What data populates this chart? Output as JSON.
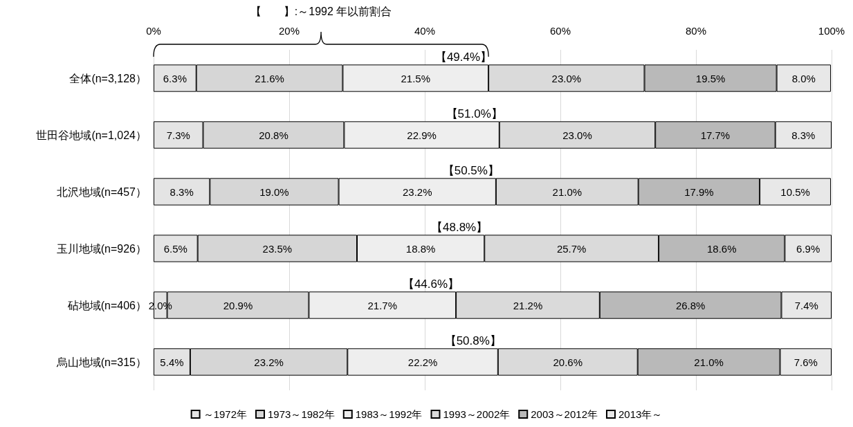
{
  "chart_data": {
    "type": "bar",
    "orientation": "horizontal",
    "stacked": true,
    "categories": [
      "全体(n=3,128）",
      "世田谷地域(n=1,024）",
      "北沢地域(n=457）",
      "玉川地域(n=926）",
      "砧地域(n=406）",
      "烏山地域(n=315）"
    ],
    "series": [
      {
        "name": "～1972年",
        "color": "#e4e4e4",
        "values": [
          6.3,
          7.3,
          8.3,
          6.5,
          2.0,
          5.4
        ],
        "value_labels": [
          "6.3%",
          "7.3%",
          "8.3%",
          "6.5%",
          "2.0%",
          "5.4%"
        ]
      },
      {
        "name": "1973～1982年",
        "color": "#d6d6d6",
        "values": [
          21.6,
          20.8,
          19.0,
          23.5,
          20.9,
          23.2
        ],
        "value_labels": [
          "21.6%",
          "20.8%",
          "19.0%",
          "23.5%",
          "20.9%",
          "23.2%"
        ]
      },
      {
        "name": "1983～1992年",
        "color": "#eeeeee",
        "values": [
          21.5,
          22.9,
          23.2,
          18.8,
          21.7,
          22.2
        ],
        "value_labels": [
          "21.5%",
          "22.9%",
          "23.2%",
          "18.8%",
          "21.7%",
          "22.2%"
        ]
      },
      {
        "name": "1993～2002年",
        "color": "#dadada",
        "values": [
          23.0,
          23.0,
          21.0,
          25.7,
          21.2,
          20.6
        ],
        "value_labels": [
          "23.0%",
          "23.0%",
          "21.0%",
          "25.7%",
          "21.2%",
          "20.6%"
        ]
      },
      {
        "name": "2003～2012年",
        "color": "#b9b9b9",
        "values": [
          19.5,
          17.7,
          17.9,
          18.6,
          26.8,
          21.0
        ],
        "value_labels": [
          "19.5%",
          "17.7%",
          "17.9%",
          "18.6%",
          "26.8%",
          "21.0%"
        ]
      },
      {
        "name": "2013年～",
        "color": "#e8e8e8",
        "values": [
          8.0,
          8.3,
          10.5,
          6.9,
          7.4,
          7.6
        ],
        "value_labels": [
          "8.0%",
          "8.3%",
          "10.5%",
          "6.9%",
          "7.4%",
          "7.6%"
        ]
      }
    ],
    "xlim": [
      0,
      100
    ],
    "xticks": [
      {
        "value": 0,
        "label": "0%"
      },
      {
        "value": 20,
        "label": "20%"
      },
      {
        "value": 40,
        "label": "40%"
      },
      {
        "value": 60,
        "label": "60%"
      },
      {
        "value": 80,
        "label": "80%"
      },
      {
        "value": 100,
        "label": "100%"
      }
    ],
    "grid": "x",
    "legend": "bottom",
    "annotations": [
      "【　　】:～1992 年以前割合",
      {
        "text": "【49.4%】",
        "x": 49.4,
        "y": "全体(n=3,128）"
      },
      {
        "text": "【51.0%】",
        "x": 51.0,
        "y": "世田谷地域(n=1,024）"
      },
      {
        "text": "【50.5%】",
        "x": 50.5,
        "y": "北沢地域(n=457）"
      },
      {
        "text": "【48.8%】",
        "x": 48.8,
        "y": "玉川地域(n=926）"
      },
      {
        "text": "【44.6%】",
        "x": 44.6,
        "y": "砧地域(n=406）"
      },
      {
        "text": "【50.8%】",
        "x": 50.8,
        "y": "烏山地域(n=315）"
      }
    ]
  }
}
